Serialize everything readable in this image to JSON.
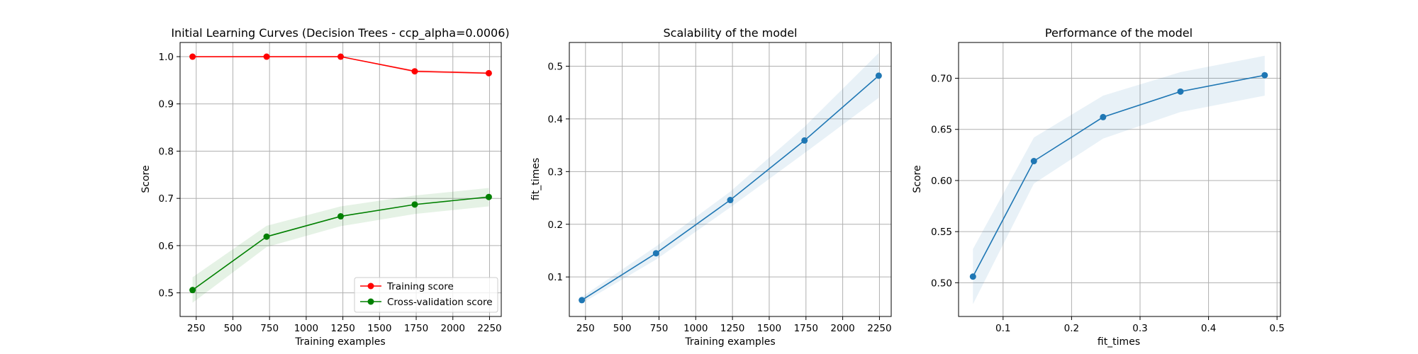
{
  "colors": {
    "training": "#ff0000",
    "cv": "#008000",
    "blue": "#1f77b4",
    "grid": "#b0b0b0",
    "axes": "#000000"
  },
  "chart_data": [
    {
      "type": "line",
      "title": "Initial Learning Curves (Decision Trees - ccp_alpha=0.0006)",
      "xlabel": "Training examples",
      "ylabel": "Score",
      "xlim": [
        140,
        2330
      ],
      "ylim": [
        0.45,
        1.03
      ],
      "xticks": [
        250,
        500,
        750,
        1000,
        1250,
        1500,
        1750,
        2000,
        2250
      ],
      "yticks": [
        0.5,
        0.6,
        0.7,
        0.8,
        0.9,
        1.0
      ],
      "xtick_labels": [
        "250",
        "500",
        "750",
        "1000",
        "1250",
        "1500",
        "1750",
        "2000",
        "2250"
      ],
      "ytick_labels": [
        "0.5",
        "0.6",
        "0.7",
        "0.8",
        "0.9",
        "1.0"
      ],
      "grid": true,
      "legend": "lower-right",
      "x": [
        225,
        730,
        1235,
        1740,
        2245
      ],
      "series": [
        {
          "name": "Training score",
          "color": "red",
          "values": [
            1.0,
            1.0,
            1.0,
            0.969,
            0.965
          ],
          "lower": [
            1.0,
            1.0,
            1.0,
            0.966,
            0.962
          ],
          "upper": [
            1.0,
            1.0,
            1.0,
            0.972,
            0.968
          ]
        },
        {
          "name": "Cross-validation score",
          "color": "green",
          "values": [
            0.506,
            0.619,
            0.662,
            0.687,
            0.703
          ],
          "lower": [
            0.479,
            0.597,
            0.641,
            0.667,
            0.683
          ],
          "upper": [
            0.533,
            0.642,
            0.683,
            0.706,
            0.722
          ]
        }
      ]
    },
    {
      "type": "line",
      "title": "Scalability of the model",
      "xlabel": "Training examples",
      "ylabel": "fit_times",
      "xlim": [
        140,
        2330
      ],
      "ylim": [
        0.025,
        0.545
      ],
      "xticks": [
        250,
        500,
        750,
        1000,
        1250,
        1500,
        1750,
        2000,
        2250
      ],
      "yticks": [
        0.1,
        0.2,
        0.3,
        0.4,
        0.5
      ],
      "xtick_labels": [
        "250",
        "500",
        "750",
        "1000",
        "1250",
        "1500",
        "1750",
        "2000",
        "2250"
      ],
      "ytick_labels": [
        "0.1",
        "0.2",
        "0.3",
        "0.4",
        "0.5"
      ],
      "grid": true,
      "x": [
        225,
        730,
        1235,
        1740,
        2245
      ],
      "series": [
        {
          "color": "blue",
          "values": [
            0.056,
            0.145,
            0.246,
            0.359,
            0.482
          ],
          "lower": [
            0.05,
            0.133,
            0.232,
            0.335,
            0.44
          ],
          "upper": [
            0.062,
            0.158,
            0.262,
            0.385,
            0.525
          ]
        }
      ]
    },
    {
      "type": "line",
      "title": "Performance of the model",
      "xlabel": "fit_times",
      "ylabel": "Score",
      "xlim": [
        0.035,
        0.505
      ],
      "ylim": [
        0.467,
        0.735
      ],
      "xticks": [
        0.1,
        0.2,
        0.3,
        0.4,
        0.5
      ],
      "yticks": [
        0.5,
        0.55,
        0.6,
        0.65,
        0.7
      ],
      "xtick_labels": [
        "0.1",
        "0.2",
        "0.3",
        "0.4",
        "0.5"
      ],
      "ytick_labels": [
        "0.50",
        "0.55",
        "0.60",
        "0.65",
        "0.70"
      ],
      "grid": true,
      "x": [
        0.056,
        0.145,
        0.246,
        0.359,
        0.482
      ],
      "series": [
        {
          "color": "blue",
          "values": [
            0.506,
            0.619,
            0.662,
            0.687,
            0.703
          ],
          "lower": [
            0.479,
            0.597,
            0.641,
            0.667,
            0.683
          ],
          "upper": [
            0.533,
            0.642,
            0.683,
            0.706,
            0.722
          ]
        }
      ]
    }
  ]
}
